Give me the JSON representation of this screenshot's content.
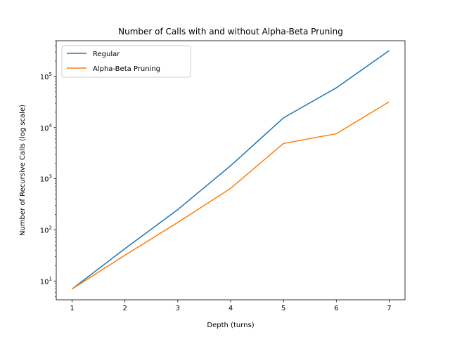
{
  "chart_data": {
    "type": "line",
    "title": "Number of Calls with and without Alpha-Beta Pruning",
    "xlabel": "Depth (turns)",
    "ylabel": "Number of Recursive Calls (log scale)",
    "y_scale": "log",
    "x": [
      1,
      2,
      3,
      4,
      5,
      6,
      7
    ],
    "x_ticks": [
      "1",
      "2",
      "3",
      "4",
      "5",
      "6",
      "7"
    ],
    "xlim": [
      0.7,
      7.3
    ],
    "ylim": [
      4.3,
      500000
    ],
    "y_ticks": [
      {
        "value": 10,
        "base": "10",
        "exp": "1"
      },
      {
        "value": 100,
        "base": "10",
        "exp": "2"
      },
      {
        "value": 1000,
        "base": "10",
        "exp": "3"
      },
      {
        "value": 10000,
        "base": "10",
        "exp": "4"
      },
      {
        "value": 100000,
        "base": "10",
        "exp": "5"
      }
    ],
    "series": [
      {
        "name": "Regular",
        "color": "#1f77b4",
        "values": [
          7,
          43,
          250,
          1800,
          15500,
          60000,
          320000
        ]
      },
      {
        "name": "Alpha-Beta Pruning",
        "color": "#ff7f0e",
        "values": [
          7,
          32,
          140,
          650,
          4900,
          7600,
          32000
        ]
      }
    ],
    "legend": "top-left",
    "grid": false
  }
}
